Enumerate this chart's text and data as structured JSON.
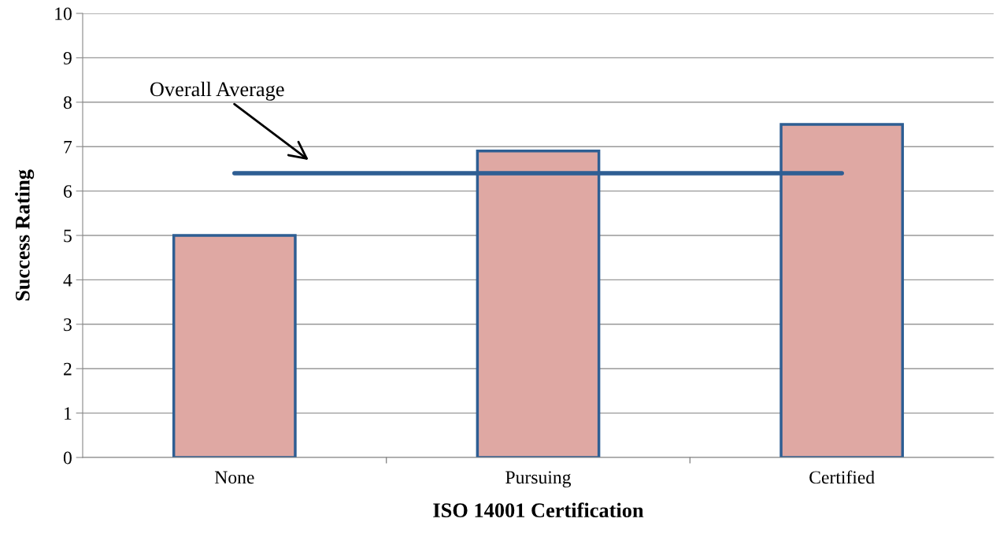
{
  "chart_data": {
    "type": "bar",
    "xlabel": "ISO 14001 Certification",
    "ylabel": "Success Rating",
    "categories": [
      "None",
      "Pursuing",
      "Certified"
    ],
    "series": [
      {
        "color": "#dfa8a3",
        "values": [
          5.0,
          6.9,
          7.5
        ]
      },
      {
        "type": "line",
        "name": "Overall Average",
        "color": "#2e5e93",
        "values": [
          6.4,
          6.4,
          6.4
        ]
      }
    ],
    "ylim": [
      0,
      10
    ],
    "yticks": [
      0,
      1,
      2,
      3,
      4,
      5,
      6,
      7,
      8,
      9,
      10
    ],
    "grid": "y",
    "legend": false,
    "marker": "none",
    "line_style": "solid"
  }
}
